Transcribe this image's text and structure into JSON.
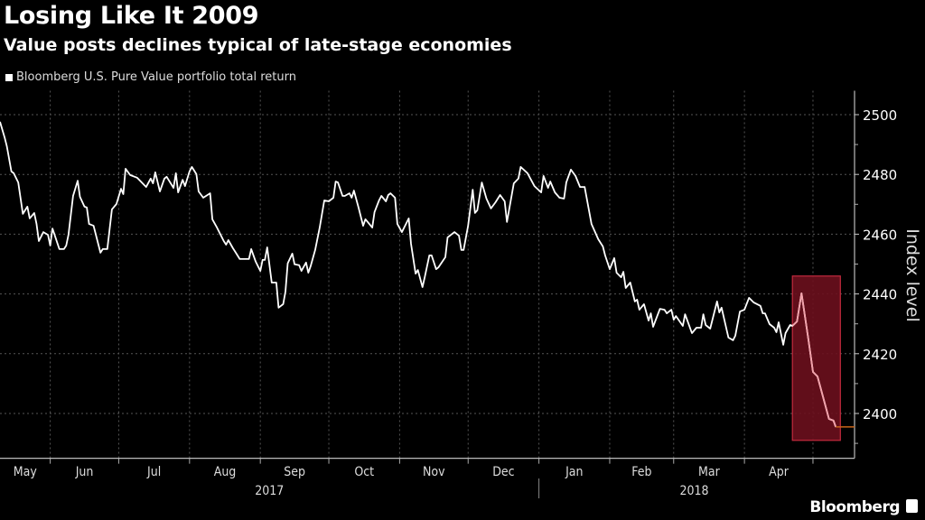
{
  "chart_data": {
    "type": "line",
    "title": "Losing Like It 2009",
    "subtitle": "Value posts declines typical of late-stage economies",
    "ylabel": "Index level",
    "ylim": [
      2385,
      2508
    ],
    "yticks": [
      2400,
      2420,
      2440,
      2460,
      2480,
      2500
    ],
    "xlim": [
      "2017-05-10",
      "2018-05-17"
    ],
    "x_month_labels": [
      "May",
      "Jun",
      "Jul",
      "Aug",
      "Sep",
      "Oct",
      "Nov",
      "Dec",
      "Jan",
      "Feb",
      "Mar",
      "Apr"
    ],
    "x_month_starts": [
      "2017-06-01",
      "2017-07-01",
      "2017-08-01",
      "2017-09-01",
      "2017-10-01",
      "2017-11-01",
      "2017-12-01",
      "2018-01-01",
      "2018-02-01",
      "2018-03-01",
      "2018-04-01",
      "2018-05-01"
    ],
    "x_year_labels": [
      {
        "label": "2017",
        "from": "2017-05-10",
        "to": "2018-01-01"
      },
      {
        "label": "2018",
        "from": "2018-01-01",
        "to": "2018-05-17"
      }
    ],
    "grid": true,
    "legend_position": "top-left",
    "series": [
      {
        "name": "Bloomberg U.S. Pure Value portfolio total return",
        "color": "#ffffff",
        "points": [
          [
            "2017-05-10",
            2497.6
          ],
          [
            "2017-05-12",
            2492.4
          ],
          [
            "2017-05-13",
            2489.4
          ],
          [
            "2017-05-15",
            2481.0
          ],
          [
            "2017-05-16",
            2480.4
          ],
          [
            "2017-05-18",
            2477.3
          ],
          [
            "2017-05-20",
            2466.8
          ],
          [
            "2017-05-22",
            2469.2
          ],
          [
            "2017-05-23",
            2465.3
          ],
          [
            "2017-05-25",
            2467.1
          ],
          [
            "2017-05-26",
            2463.5
          ],
          [
            "2017-05-27",
            2457.7
          ],
          [
            "2017-05-29",
            2460.7
          ],
          [
            "2017-05-31",
            2459.8
          ],
          [
            "2017-06-01",
            2456.2
          ],
          [
            "2017-06-02",
            2461.9
          ],
          [
            "2017-06-05",
            2455.0
          ],
          [
            "2017-06-07",
            2455.0
          ],
          [
            "2017-06-08",
            2456.2
          ],
          [
            "2017-06-09",
            2459.8
          ],
          [
            "2017-06-11",
            2472.8
          ],
          [
            "2017-06-13",
            2477.9
          ],
          [
            "2017-06-14",
            2472.5
          ],
          [
            "2017-06-16",
            2469.2
          ],
          [
            "2017-06-17",
            2468.9
          ],
          [
            "2017-06-18",
            2463.4
          ],
          [
            "2017-06-20",
            2462.8
          ],
          [
            "2017-06-23",
            2453.8
          ],
          [
            "2017-06-24",
            2455.0
          ],
          [
            "2017-06-26",
            2455.0
          ],
          [
            "2017-06-28",
            2468.3
          ],
          [
            "2017-06-30",
            2470.1
          ],
          [
            "2017-07-02",
            2475.2
          ],
          [
            "2017-07-03",
            2473.4
          ],
          [
            "2017-07-04",
            2481.9
          ],
          [
            "2017-07-06",
            2479.8
          ],
          [
            "2017-07-09",
            2478.9
          ],
          [
            "2017-07-13",
            2475.8
          ],
          [
            "2017-07-15",
            2478.6
          ],
          [
            "2017-07-16",
            2477.0
          ],
          [
            "2017-07-17",
            2480.7
          ],
          [
            "2017-07-19",
            2474.3
          ],
          [
            "2017-07-21",
            2478.6
          ],
          [
            "2017-07-22",
            2479.2
          ],
          [
            "2017-07-25",
            2475.5
          ],
          [
            "2017-07-26",
            2480.4
          ],
          [
            "2017-07-27",
            2474.0
          ],
          [
            "2017-07-29",
            2478.2
          ],
          [
            "2017-07-30",
            2476.1
          ],
          [
            "2017-08-01",
            2481.0
          ],
          [
            "2017-08-02",
            2482.5
          ],
          [
            "2017-08-04",
            2480.1
          ],
          [
            "2017-08-05",
            2474.3
          ],
          [
            "2017-08-07",
            2472.2
          ],
          [
            "2017-08-10",
            2473.7
          ],
          [
            "2017-08-11",
            2465.0
          ],
          [
            "2017-08-13",
            2462.2
          ],
          [
            "2017-08-16",
            2457.7
          ],
          [
            "2017-08-17",
            2456.5
          ],
          [
            "2017-08-18",
            2458.0
          ],
          [
            "2017-08-20",
            2455.3
          ],
          [
            "2017-08-21",
            2454.1
          ],
          [
            "2017-08-23",
            2451.7
          ],
          [
            "2017-08-25",
            2451.7
          ],
          [
            "2017-08-27",
            2451.7
          ],
          [
            "2017-08-28",
            2455.0
          ],
          [
            "2017-08-30",
            2450.8
          ],
          [
            "2017-09-01",
            2447.7
          ],
          [
            "2017-09-02",
            2451.4
          ],
          [
            "2017-09-03",
            2451.4
          ],
          [
            "2017-09-04",
            2455.6
          ],
          [
            "2017-09-06",
            2443.8
          ],
          [
            "2017-09-08",
            2443.8
          ],
          [
            "2017-09-09",
            2435.4
          ],
          [
            "2017-09-11",
            2436.6
          ],
          [
            "2017-09-12",
            2440.8
          ],
          [
            "2017-09-13",
            2450.2
          ],
          [
            "2017-09-15",
            2453.5
          ],
          [
            "2017-09-16",
            2449.9
          ],
          [
            "2017-09-18",
            2449.6
          ],
          [
            "2017-09-19",
            2447.7
          ],
          [
            "2017-09-21",
            2450.5
          ],
          [
            "2017-09-22",
            2447.1
          ],
          [
            "2017-09-23",
            2449.2
          ],
          [
            "2017-09-25",
            2454.7
          ],
          [
            "2017-09-27",
            2462.2
          ],
          [
            "2017-09-29",
            2471.3
          ],
          [
            "2017-10-01",
            2471.0
          ],
          [
            "2017-10-03",
            2472.2
          ],
          [
            "2017-10-04",
            2477.6
          ],
          [
            "2017-10-05",
            2477.3
          ],
          [
            "2017-10-07",
            2472.8
          ],
          [
            "2017-10-08",
            2472.8
          ],
          [
            "2017-10-10",
            2473.7
          ],
          [
            "2017-10-11",
            2472.2
          ],
          [
            "2017-10-12",
            2474.6
          ],
          [
            "2017-10-14",
            2468.9
          ],
          [
            "2017-10-16",
            2462.8
          ],
          [
            "2017-10-17",
            2465.0
          ],
          [
            "2017-10-18",
            2464.1
          ],
          [
            "2017-10-20",
            2462.2
          ],
          [
            "2017-10-21",
            2467.4
          ],
          [
            "2017-10-23",
            2471.3
          ],
          [
            "2017-10-24",
            2472.8
          ],
          [
            "2017-10-26",
            2471.0
          ],
          [
            "2017-10-27",
            2473.1
          ],
          [
            "2017-10-28",
            2473.7
          ],
          [
            "2017-10-30",
            2472.2
          ],
          [
            "2017-10-31",
            2463.4
          ],
          [
            "2017-11-02",
            2460.7
          ],
          [
            "2017-11-05",
            2465.3
          ],
          [
            "2017-11-06",
            2456.8
          ],
          [
            "2017-11-08",
            2446.8
          ],
          [
            "2017-11-09",
            2448.0
          ],
          [
            "2017-11-11",
            2442.3
          ],
          [
            "2017-11-12",
            2445.6
          ],
          [
            "2017-11-14",
            2452.9
          ],
          [
            "2017-11-15",
            2452.9
          ],
          [
            "2017-11-17",
            2448.3
          ],
          [
            "2017-11-18",
            2448.9
          ],
          [
            "2017-11-21",
            2452.3
          ],
          [
            "2017-11-22",
            2458.9
          ],
          [
            "2017-11-25",
            2460.7
          ],
          [
            "2017-11-27",
            2459.5
          ],
          [
            "2017-11-28",
            2454.7
          ],
          [
            "2017-11-29",
            2454.7
          ],
          [
            "2017-12-01",
            2462.8
          ],
          [
            "2017-12-03",
            2474.9
          ],
          [
            "2017-12-04",
            2467.1
          ],
          [
            "2017-12-05",
            2468.0
          ],
          [
            "2017-12-07",
            2477.3
          ],
          [
            "2017-12-09",
            2471.9
          ],
          [
            "2017-12-11",
            2468.6
          ],
          [
            "2017-12-13",
            2470.7
          ],
          [
            "2017-12-15",
            2473.1
          ],
          [
            "2017-12-17",
            2471.0
          ],
          [
            "2017-12-18",
            2464.1
          ],
          [
            "2017-12-21",
            2477.0
          ],
          [
            "2017-12-23",
            2478.6
          ],
          [
            "2017-12-24",
            2482.5
          ],
          [
            "2017-12-27",
            2480.4
          ],
          [
            "2017-12-30",
            2476.1
          ],
          [
            "2018-01-02",
            2474.0
          ],
          [
            "2018-01-03",
            2479.5
          ],
          [
            "2018-01-05",
            2475.5
          ],
          [
            "2018-01-06",
            2477.6
          ],
          [
            "2018-01-08",
            2474.0
          ],
          [
            "2018-01-10",
            2472.2
          ],
          [
            "2018-01-12",
            2471.9
          ],
          [
            "2018-01-13",
            2477.3
          ],
          [
            "2018-01-15",
            2481.6
          ],
          [
            "2018-01-17",
            2479.5
          ],
          [
            "2018-01-19",
            2475.8
          ],
          [
            "2018-01-21",
            2475.8
          ],
          [
            "2018-01-24",
            2463.4
          ],
          [
            "2018-01-27",
            2458.3
          ],
          [
            "2018-01-29",
            2455.9
          ],
          [
            "2018-01-30",
            2452.9
          ],
          [
            "2018-02-01",
            2448.3
          ],
          [
            "2018-02-03",
            2452.0
          ],
          [
            "2018-02-04",
            2447.1
          ],
          [
            "2018-02-06",
            2445.6
          ],
          [
            "2018-02-07",
            2447.4
          ],
          [
            "2018-02-08",
            2442.0
          ],
          [
            "2018-02-10",
            2443.8
          ],
          [
            "2018-02-12",
            2437.5
          ],
          [
            "2018-02-13",
            2438.1
          ],
          [
            "2018-02-14",
            2434.7
          ],
          [
            "2018-02-16",
            2436.6
          ],
          [
            "2018-02-18",
            2431.1
          ],
          [
            "2018-02-19",
            2433.5
          ],
          [
            "2018-02-20",
            2429.0
          ],
          [
            "2018-02-23",
            2435.0
          ],
          [
            "2018-02-25",
            2434.7
          ],
          [
            "2018-02-26",
            2433.5
          ],
          [
            "2018-02-28",
            2434.7
          ],
          [
            "2018-03-01",
            2431.4
          ],
          [
            "2018-03-02",
            2432.6
          ],
          [
            "2018-03-05",
            2429.3
          ],
          [
            "2018-03-06",
            2433.2
          ],
          [
            "2018-03-09",
            2426.9
          ],
          [
            "2018-03-11",
            2428.7
          ],
          [
            "2018-03-13",
            2428.7
          ],
          [
            "2018-03-14",
            2433.2
          ],
          [
            "2018-03-15",
            2429.6
          ],
          [
            "2018-03-17",
            2428.4
          ],
          [
            "2018-03-20",
            2437.5
          ],
          [
            "2018-03-21",
            2433.8
          ],
          [
            "2018-03-22",
            2435.4
          ],
          [
            "2018-03-25",
            2425.4
          ],
          [
            "2018-03-27",
            2424.5
          ],
          [
            "2018-03-28",
            2426.0
          ],
          [
            "2018-03-30",
            2434.1
          ],
          [
            "2018-04-01",
            2434.7
          ],
          [
            "2018-04-03",
            2438.7
          ],
          [
            "2018-04-05",
            2437.2
          ],
          [
            "2018-04-08",
            2436.0
          ],
          [
            "2018-04-09",
            2433.5
          ],
          [
            "2018-04-10",
            2433.5
          ],
          [
            "2018-04-12",
            2429.9
          ],
          [
            "2018-04-14",
            2428.7
          ],
          [
            "2018-04-15",
            2427.2
          ],
          [
            "2018-04-16",
            2430.5
          ],
          [
            "2018-04-18",
            2423.0
          ],
          [
            "2018-04-19",
            2426.9
          ],
          [
            "2018-04-21",
            2429.6
          ],
          [
            "2018-04-22",
            2429.3
          ],
          [
            "2018-04-24",
            2430.8
          ],
          [
            "2018-04-26",
            2440.2
          ],
          [
            "2018-04-29",
            2424.8
          ],
          [
            "2018-05-01",
            2413.9
          ],
          [
            "2018-05-03",
            2412.4
          ],
          [
            "2018-05-06",
            2403.9
          ],
          [
            "2018-05-08",
            2398.2
          ],
          [
            "2018-05-10",
            2397.6
          ],
          [
            "2018-05-11",
            2395.5
          ]
        ]
      }
    ],
    "highlight": {
      "from": "2018-04-22",
      "to": "2018-05-13",
      "ymin": 2391,
      "ymax": 2446,
      "fill": "#6b0f1d",
      "border": "#c22a3e",
      "line_color": "#f3a1aa"
    },
    "last_value_marker": {
      "value": 2395.5,
      "color": "#c8651a"
    }
  },
  "brand": "Bloomberg"
}
